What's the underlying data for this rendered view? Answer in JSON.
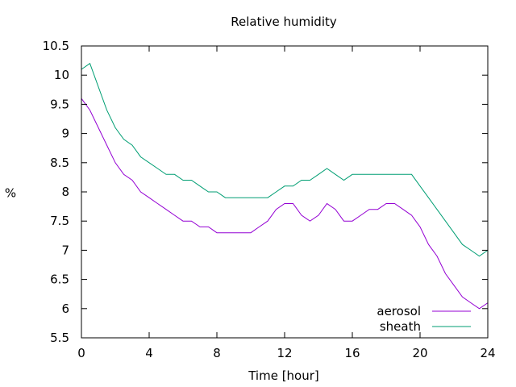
{
  "chart_data": {
    "type": "line",
    "title": "Relative humidity",
    "xlabel": "Time [hour]",
    "ylabel": "%",
    "xlim": [
      0,
      24
    ],
    "ylim": [
      5.5,
      10.5
    ],
    "xticks": [
      0,
      4,
      8,
      12,
      16,
      20,
      24
    ],
    "yticks": [
      5.5,
      6,
      6.5,
      7,
      7.5,
      8,
      8.5,
      9,
      9.5,
      10,
      10.5
    ],
    "grid": false,
    "legend_position": "bottom-right",
    "series": [
      {
        "name": "aerosol",
        "color": "#9400d3",
        "x": [
          0,
          0.5,
          1,
          1.5,
          2,
          2.5,
          3,
          3.5,
          4,
          4.5,
          5,
          5.5,
          6,
          6.5,
          7,
          7.5,
          8,
          8.5,
          9,
          9.5,
          10,
          10.5,
          11,
          11.5,
          12,
          12.5,
          13,
          13.5,
          14,
          14.5,
          15,
          15.5,
          16,
          16.5,
          17,
          17.5,
          18,
          18.5,
          19,
          19.5,
          20,
          20.5,
          21,
          21.5,
          22,
          22.5,
          23,
          23.5,
          24
        ],
        "values": [
          9.6,
          9.4,
          9.1,
          8.8,
          8.5,
          8.3,
          8.2,
          8.0,
          7.9,
          7.8,
          7.7,
          7.6,
          7.5,
          7.5,
          7.4,
          7.4,
          7.3,
          7.3,
          7.3,
          7.3,
          7.3,
          7.4,
          7.5,
          7.7,
          7.8,
          7.8,
          7.6,
          7.5,
          7.6,
          7.8,
          7.7,
          7.5,
          7.5,
          7.6,
          7.7,
          7.7,
          7.8,
          7.8,
          7.7,
          7.6,
          7.4,
          7.1,
          6.9,
          6.6,
          6.4,
          6.2,
          6.1,
          6.0,
          6.1
        ]
      },
      {
        "name": "sheath",
        "color": "#009e73",
        "x": [
          0,
          0.5,
          1,
          1.5,
          2,
          2.5,
          3,
          3.5,
          4,
          4.5,
          5,
          5.5,
          6,
          6.5,
          7,
          7.5,
          8,
          8.5,
          9,
          9.5,
          10,
          10.5,
          11,
          11.5,
          12,
          12.5,
          13,
          13.5,
          14,
          14.5,
          15,
          15.5,
          16,
          16.5,
          17,
          17.5,
          18,
          18.5,
          19,
          19.5,
          20,
          20.5,
          21,
          21.5,
          22,
          22.5,
          23,
          23.5,
          24
        ],
        "values": [
          10.1,
          10.2,
          9.8,
          9.4,
          9.1,
          8.9,
          8.8,
          8.6,
          8.5,
          8.4,
          8.3,
          8.3,
          8.2,
          8.2,
          8.1,
          8.0,
          8.0,
          7.9,
          7.9,
          7.9,
          7.9,
          7.9,
          7.9,
          8.0,
          8.1,
          8.1,
          8.2,
          8.2,
          8.3,
          8.4,
          8.3,
          8.2,
          8.3,
          8.3,
          8.3,
          8.3,
          8.3,
          8.3,
          8.3,
          8.3,
          8.1,
          7.9,
          7.7,
          7.5,
          7.3,
          7.1,
          7.0,
          6.9,
          7.0
        ]
      }
    ]
  }
}
